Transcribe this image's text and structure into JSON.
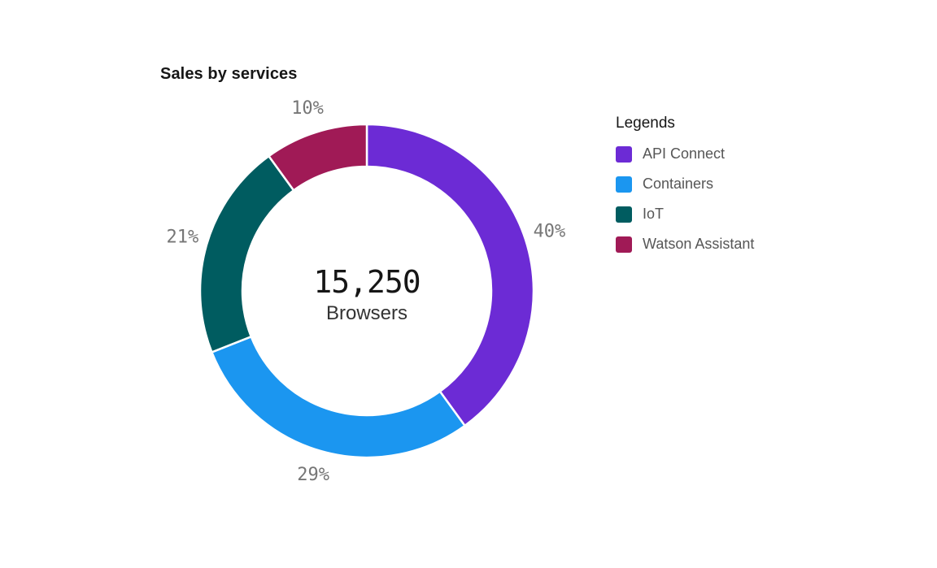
{
  "page": {
    "background": "#ffffff"
  },
  "chart_data": {
    "type": "pie",
    "variant": "donut",
    "title": "Sales by services",
    "categories": [
      "API Connect",
      "Containers",
      "IoT",
      "Watson Assistant"
    ],
    "values": [
      40,
      29,
      21,
      10
    ],
    "unit": "%",
    "colors": [
      "#6c2bd5",
      "#1b96f0",
      "#005c60",
      "#a01a56"
    ],
    "segment_labels": [
      "40%",
      "29%",
      "21%",
      "10%"
    ],
    "center_value": "15,250",
    "center_label": "Browsers",
    "legend_title": "Legends",
    "legend_position": "right",
    "start_angle_deg": 0,
    "direction": "clockwise",
    "label_color": "#767676",
    "gap_color": "#ffffff"
  }
}
